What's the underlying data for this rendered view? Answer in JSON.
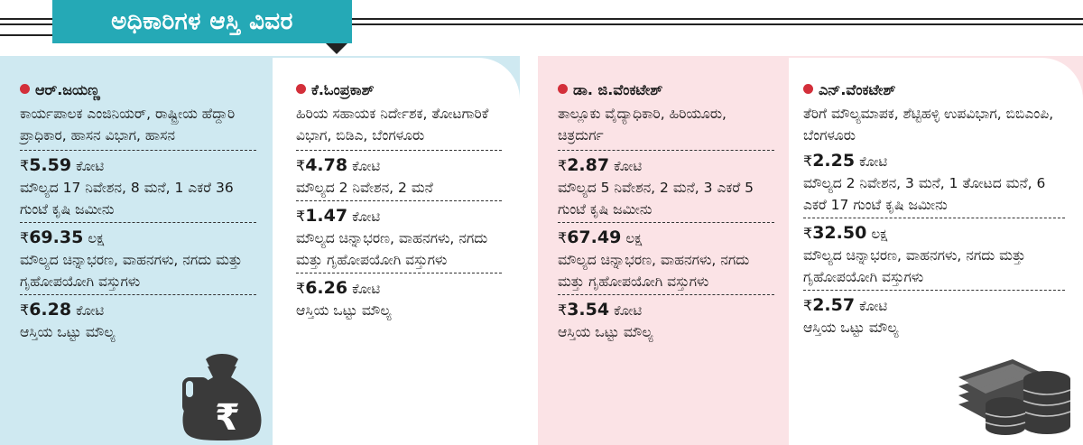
{
  "title": "ಅಧಿಕಾರಿಗಳ ಆಸ್ತಿ ವಿವರ",
  "colors": {
    "banner": "#25a9b6",
    "left_panel": "#cfe9f1",
    "right_panel": "#fbe3e6",
    "bullet": "#d32f3a"
  },
  "icons": {
    "left": "money-bag-rupee-icon",
    "right": "coins-and-cash-icon"
  },
  "officials": [
    {
      "name": "ಆರ್.ಜಯಣ್ಣ",
      "designation": "ಕಾರ್ಯಪಾಲಕ ಎಂಜಿನಿಯರ್, ರಾಷ್ಟ್ರೀಯ ಹೆದ್ದಾರಿ ಪ್ರಾಧಿಕಾರ, ಹಾಸನ ವಿಭಾಗ, ಹಾಸನ",
      "assets": [
        {
          "currency": "₹",
          "amount": "5.59",
          "unit": "ಕೋಟಿ",
          "desc": "ಮೌಲ್ಯದ 17 ನಿವೇಶನ, 8 ಮನೆ, 1 ಎಕರೆ 36 ಗುಂಟೆ ಕೃಷಿ ಜಮೀನು"
        },
        {
          "currency": "₹",
          "amount": "69.35",
          "unit": "ಲಕ್ಷ",
          "desc": "ಮೌಲ್ಯದ ಚಿನ್ನಾಭರಣ, ವಾಹನಗಳು, ನಗದು ಮತ್ತು ಗೃಹೋಪಯೋಗಿ ವಸ್ತುಗಳು"
        },
        {
          "currency": "₹",
          "amount": "6.28",
          "unit": "ಕೋಟಿ",
          "desc": "ಆಸ್ತಿಯ ಒಟ್ಟು ಮೌಲ್ಯ"
        }
      ]
    },
    {
      "name": "ಕೆ.ಓಂಪ್ರಕಾಶ್",
      "designation": "ಹಿರಿಯ ಸಹಾಯಕ ನಿರ್ದೇಶಕ, ತೋಟಗಾರಿಕೆ ವಿಭಾಗ, ಬಿಡಿಎ, ಬೆಂಗಳೂರು",
      "assets": [
        {
          "currency": "₹",
          "amount": "4.78",
          "unit": "ಕೋಟಿ",
          "desc": "ಮೌಲ್ಯದ 2 ನಿವೇಶನ, 2 ಮನೆ"
        },
        {
          "currency": "₹",
          "amount": "1.47",
          "unit": "ಕೋಟಿ",
          "desc": "ಮೌಲ್ಯದ ಚಿನ್ನಾಭರಣ, ವಾಹನಗಳು, ನಗದು ಮತ್ತು ಗೃಹೋಪಯೋಗಿ ವಸ್ತುಗಳು"
        },
        {
          "currency": "₹",
          "amount": "6.26",
          "unit": "ಕೋಟಿ",
          "desc": "ಆಸ್ತಿಯ ಒಟ್ಟು ಮೌಲ್ಯ"
        }
      ]
    },
    {
      "name": "ಡಾ. ಜಿ.ವೆಂಕಟೇಶ್",
      "designation": "ತಾಲ್ಲೂಕು ವೈದ್ಯಾಧಿಕಾರಿ, ಹಿರಿಯೂರು, ಚಿತ್ರದುರ್ಗ",
      "assets": [
        {
          "currency": "₹",
          "amount": "2.87",
          "unit": "ಕೋಟಿ",
          "desc": "ಮೌಲ್ಯದ 5 ನಿವೇಶನ, 2 ಮನೆ, 3 ಎಕರೆ 5 ಗುಂಟೆ ಕೃಷಿ ಜಮೀನು"
        },
        {
          "currency": "₹",
          "amount": "67.49",
          "unit": "ಲಕ್ಷ",
          "desc": "ಮೌಲ್ಯದ ಚಿನ್ನಾಭರಣ, ವಾಹನಗಳು, ನಗದು ಮತ್ತು ಗೃಹೋಪಯೋಗಿ ವಸ್ತುಗಳು"
        },
        {
          "currency": "₹",
          "amount": "3.54",
          "unit": "ಕೋಟಿ",
          "desc": "ಆಸ್ತಿಯ ಒಟ್ಟು ಮೌಲ್ಯ"
        }
      ]
    },
    {
      "name": "ಎನ್.ವೆಂಕಟೇಶ್",
      "designation": "ತೆರಿಗೆ ಮೌಲ್ಯಮಾಪಕ, ಶೆಟ್ಟಿಹಳ್ಳಿ ಉಪವಿಭಾಗ, ಬಿಬಿಎಂಪಿ, ಬೆಂಗಳೂರು",
      "assets": [
        {
          "currency": "₹",
          "amount": "2.25",
          "unit": "ಕೋಟಿ",
          "desc": "ಮೌಲ್ಯದ 2 ನಿವೇಶನ, 3 ಮನೆ, 1 ತೋಟದ ಮನೆ, 6 ಎಕರೆ 17 ಗುಂಟೆ ಕೃಷಿ ಜಮೀನು"
        },
        {
          "currency": "₹",
          "amount": "32.50",
          "unit": "ಲಕ್ಷ",
          "desc": "ಮೌಲ್ಯದ ಚಿನ್ನಾಭರಣ, ವಾಹನಗಳು, ನಗದು ಮತ್ತು ಗೃಹೋಪಯೋಗಿ ವಸ್ತುಗಳು"
        },
        {
          "currency": "₹",
          "amount": "2.57",
          "unit": "ಕೋಟಿ",
          "desc": "ಆಸ್ತಿಯ ಒಟ್ಟು ಮೌಲ್ಯ"
        }
      ]
    }
  ]
}
